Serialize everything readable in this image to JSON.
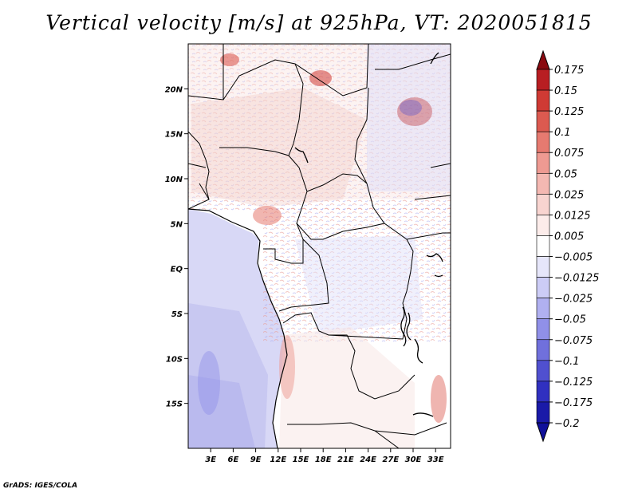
{
  "title": "Vertical velocity [m/s] at 925hPa, VT: 2020051815",
  "credit": "GrADS: IGES/COLA",
  "map": {
    "lon_range": [
      0,
      35
    ],
    "lat_range": [
      -20,
      25
    ],
    "lat_ticks": [
      {
        "label": "20N",
        "value": 20
      },
      {
        "label": "15N",
        "value": 15
      },
      {
        "label": "10N",
        "value": 10
      },
      {
        "label": "5N",
        "value": 5
      },
      {
        "label": "EQ",
        "value": 0
      },
      {
        "label": "5S",
        "value": -5
      },
      {
        "label": "10S",
        "value": -10
      },
      {
        "label": "15S",
        "value": -15
      }
    ],
    "lon_ticks": [
      {
        "label": "3E",
        "value": 3
      },
      {
        "label": "6E",
        "value": 6
      },
      {
        "label": "9E",
        "value": 9
      },
      {
        "label": "12E",
        "value": 12
      },
      {
        "label": "15E",
        "value": 15
      },
      {
        "label": "18E",
        "value": 18
      },
      {
        "label": "21E",
        "value": 21
      },
      {
        "label": "24E",
        "value": 24
      },
      {
        "label": "27E",
        "value": 27
      },
      {
        "label": "30E",
        "value": 30
      },
      {
        "label": "33E",
        "value": 33
      }
    ]
  },
  "colorbar": {
    "levels": [
      {
        "label": "0.175",
        "color": "#9a0e16"
      },
      {
        "label": "0.15",
        "color": "#b81e22"
      },
      {
        "label": "0.125",
        "color": "#cf3a34"
      },
      {
        "label": "0.1",
        "color": "#dc5a50"
      },
      {
        "label": "0.075",
        "color": "#e67a70"
      },
      {
        "label": "0.05",
        "color": "#ee9a92"
      },
      {
        "label": "0.025",
        "color": "#f4b8b2"
      },
      {
        "label": "0.0125",
        "color": "#f8d4d0"
      },
      {
        "label": "0.005",
        "color": "#fcecea"
      },
      {
        "label": "-0.005",
        "color": "#ffffff"
      },
      {
        "label": "-0.0125",
        "color": "#e6e6fa"
      },
      {
        "label": "-0.025",
        "color": "#ccccf6"
      },
      {
        "label": "-0.05",
        "color": "#b0b0f0"
      },
      {
        "label": "-0.075",
        "color": "#9090e8"
      },
      {
        "label": "-0.1",
        "color": "#7070dc"
      },
      {
        "label": "-0.125",
        "color": "#5050d0"
      },
      {
        "label": "-0.175",
        "color": "#3030c0"
      },
      {
        "label": "-0.2",
        "color": "#1a1aa8"
      }
    ],
    "top_color": "#8a0a10",
    "bottom_color": "#10109a"
  }
}
